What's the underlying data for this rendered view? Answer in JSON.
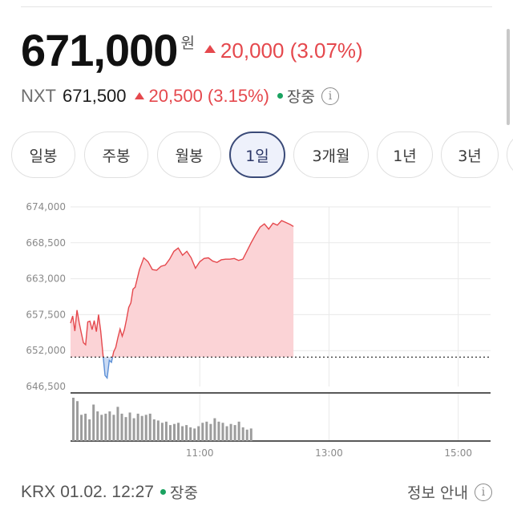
{
  "quote": {
    "price": "671,000",
    "unit": "원",
    "change": "20,000 (3.07%)",
    "direction": "up",
    "up_color": "#e5484d"
  },
  "nxt": {
    "label": "NXT",
    "price": "671,500",
    "change": "20,500 (3.15%)",
    "status": "장중",
    "status_color": "#1aa260",
    "info_icon": "info-icon"
  },
  "period_tabs": [
    {
      "label": "일봉",
      "active": false
    },
    {
      "label": "주봉",
      "active": false
    },
    {
      "label": "월봉",
      "active": false
    },
    {
      "label": "1일",
      "active": true
    },
    {
      "label": "3개월",
      "active": false
    },
    {
      "label": "1년",
      "active": false
    },
    {
      "label": "3년",
      "active": false
    },
    {
      "label": "",
      "active": false
    }
  ],
  "chart_data": {
    "type": "area",
    "y_ticks": [
      "674,000",
      "668,500",
      "663,000",
      "657,500",
      "652,000",
      "646,500"
    ],
    "ylim": [
      646500,
      674000
    ],
    "x_ticks": [
      "11:00",
      "13:00",
      "15:00"
    ],
    "xlim": [
      "09:00",
      "15:30"
    ],
    "reference_price": 651000,
    "up_fill": "#fbd3d6",
    "down_fill": "#c9daf3",
    "line_up_color": "#e5484d",
    "line_down_color": "#5b8fd6",
    "price_series": {
      "x": [
        "09:00",
        "09:02",
        "09:04",
        "09:06",
        "09:08",
        "09:10",
        "09:12",
        "09:14",
        "09:16",
        "09:18",
        "09:20",
        "09:22",
        "09:24",
        "09:26",
        "09:28",
        "09:30",
        "09:32",
        "09:34",
        "09:36",
        "09:38",
        "09:40",
        "09:42",
        "09:44",
        "09:46",
        "09:48",
        "09:50",
        "09:52",
        "09:54",
        "09:56",
        "09:58",
        "10:00",
        "10:04",
        "10:08",
        "10:12",
        "10:16",
        "10:20",
        "10:24",
        "10:28",
        "10:32",
        "10:36",
        "10:40",
        "10:44",
        "10:48",
        "10:52",
        "10:56",
        "11:00",
        "11:04",
        "11:08",
        "11:12",
        "11:16",
        "11:20",
        "11:24",
        "11:28",
        "11:32",
        "11:36",
        "11:40",
        "11:44",
        "11:48",
        "11:52",
        "11:56",
        "12:00",
        "12:04",
        "12:08",
        "12:12",
        "12:16",
        "12:20",
        "12:24",
        "12:27"
      ],
      "values": [
        656200,
        657300,
        655000,
        658200,
        656300,
        654700,
        653200,
        652900,
        656400,
        656500,
        655200,
        656600,
        654900,
        657500,
        655000,
        651600,
        648200,
        647800,
        650500,
        650200,
        651800,
        652500,
        654000,
        655300,
        654200,
        655200,
        656800,
        658600,
        659300,
        661400,
        661700,
        664400,
        666200,
        665600,
        664400,
        664300,
        664900,
        665100,
        666000,
        667200,
        667700,
        666600,
        667200,
        666200,
        664600,
        665600,
        666100,
        666200,
        665700,
        665500,
        665900,
        666000,
        666000,
        666100,
        665800,
        666000,
        667300,
        668600,
        669800,
        670900,
        671400,
        670600,
        671500,
        671200,
        671900,
        671600,
        671300,
        671000
      ]
    },
    "volume": [
      190,
      175,
      115,
      120,
      95,
      160,
      130,
      115,
      120,
      130,
      115,
      150,
      120,
      105,
      125,
      100,
      120,
      110,
      115,
      120,
      95,
      90,
      80,
      85,
      70,
      75,
      80,
      65,
      70,
      60,
      55,
      65,
      80,
      85,
      75,
      100,
      85,
      80,
      65,
      75,
      70,
      85,
      60,
      50,
      55
    ]
  },
  "footer": {
    "market": "KRX",
    "timestamp": "01.02. 12:27",
    "status": "장중",
    "info_label": "정보 안내"
  }
}
